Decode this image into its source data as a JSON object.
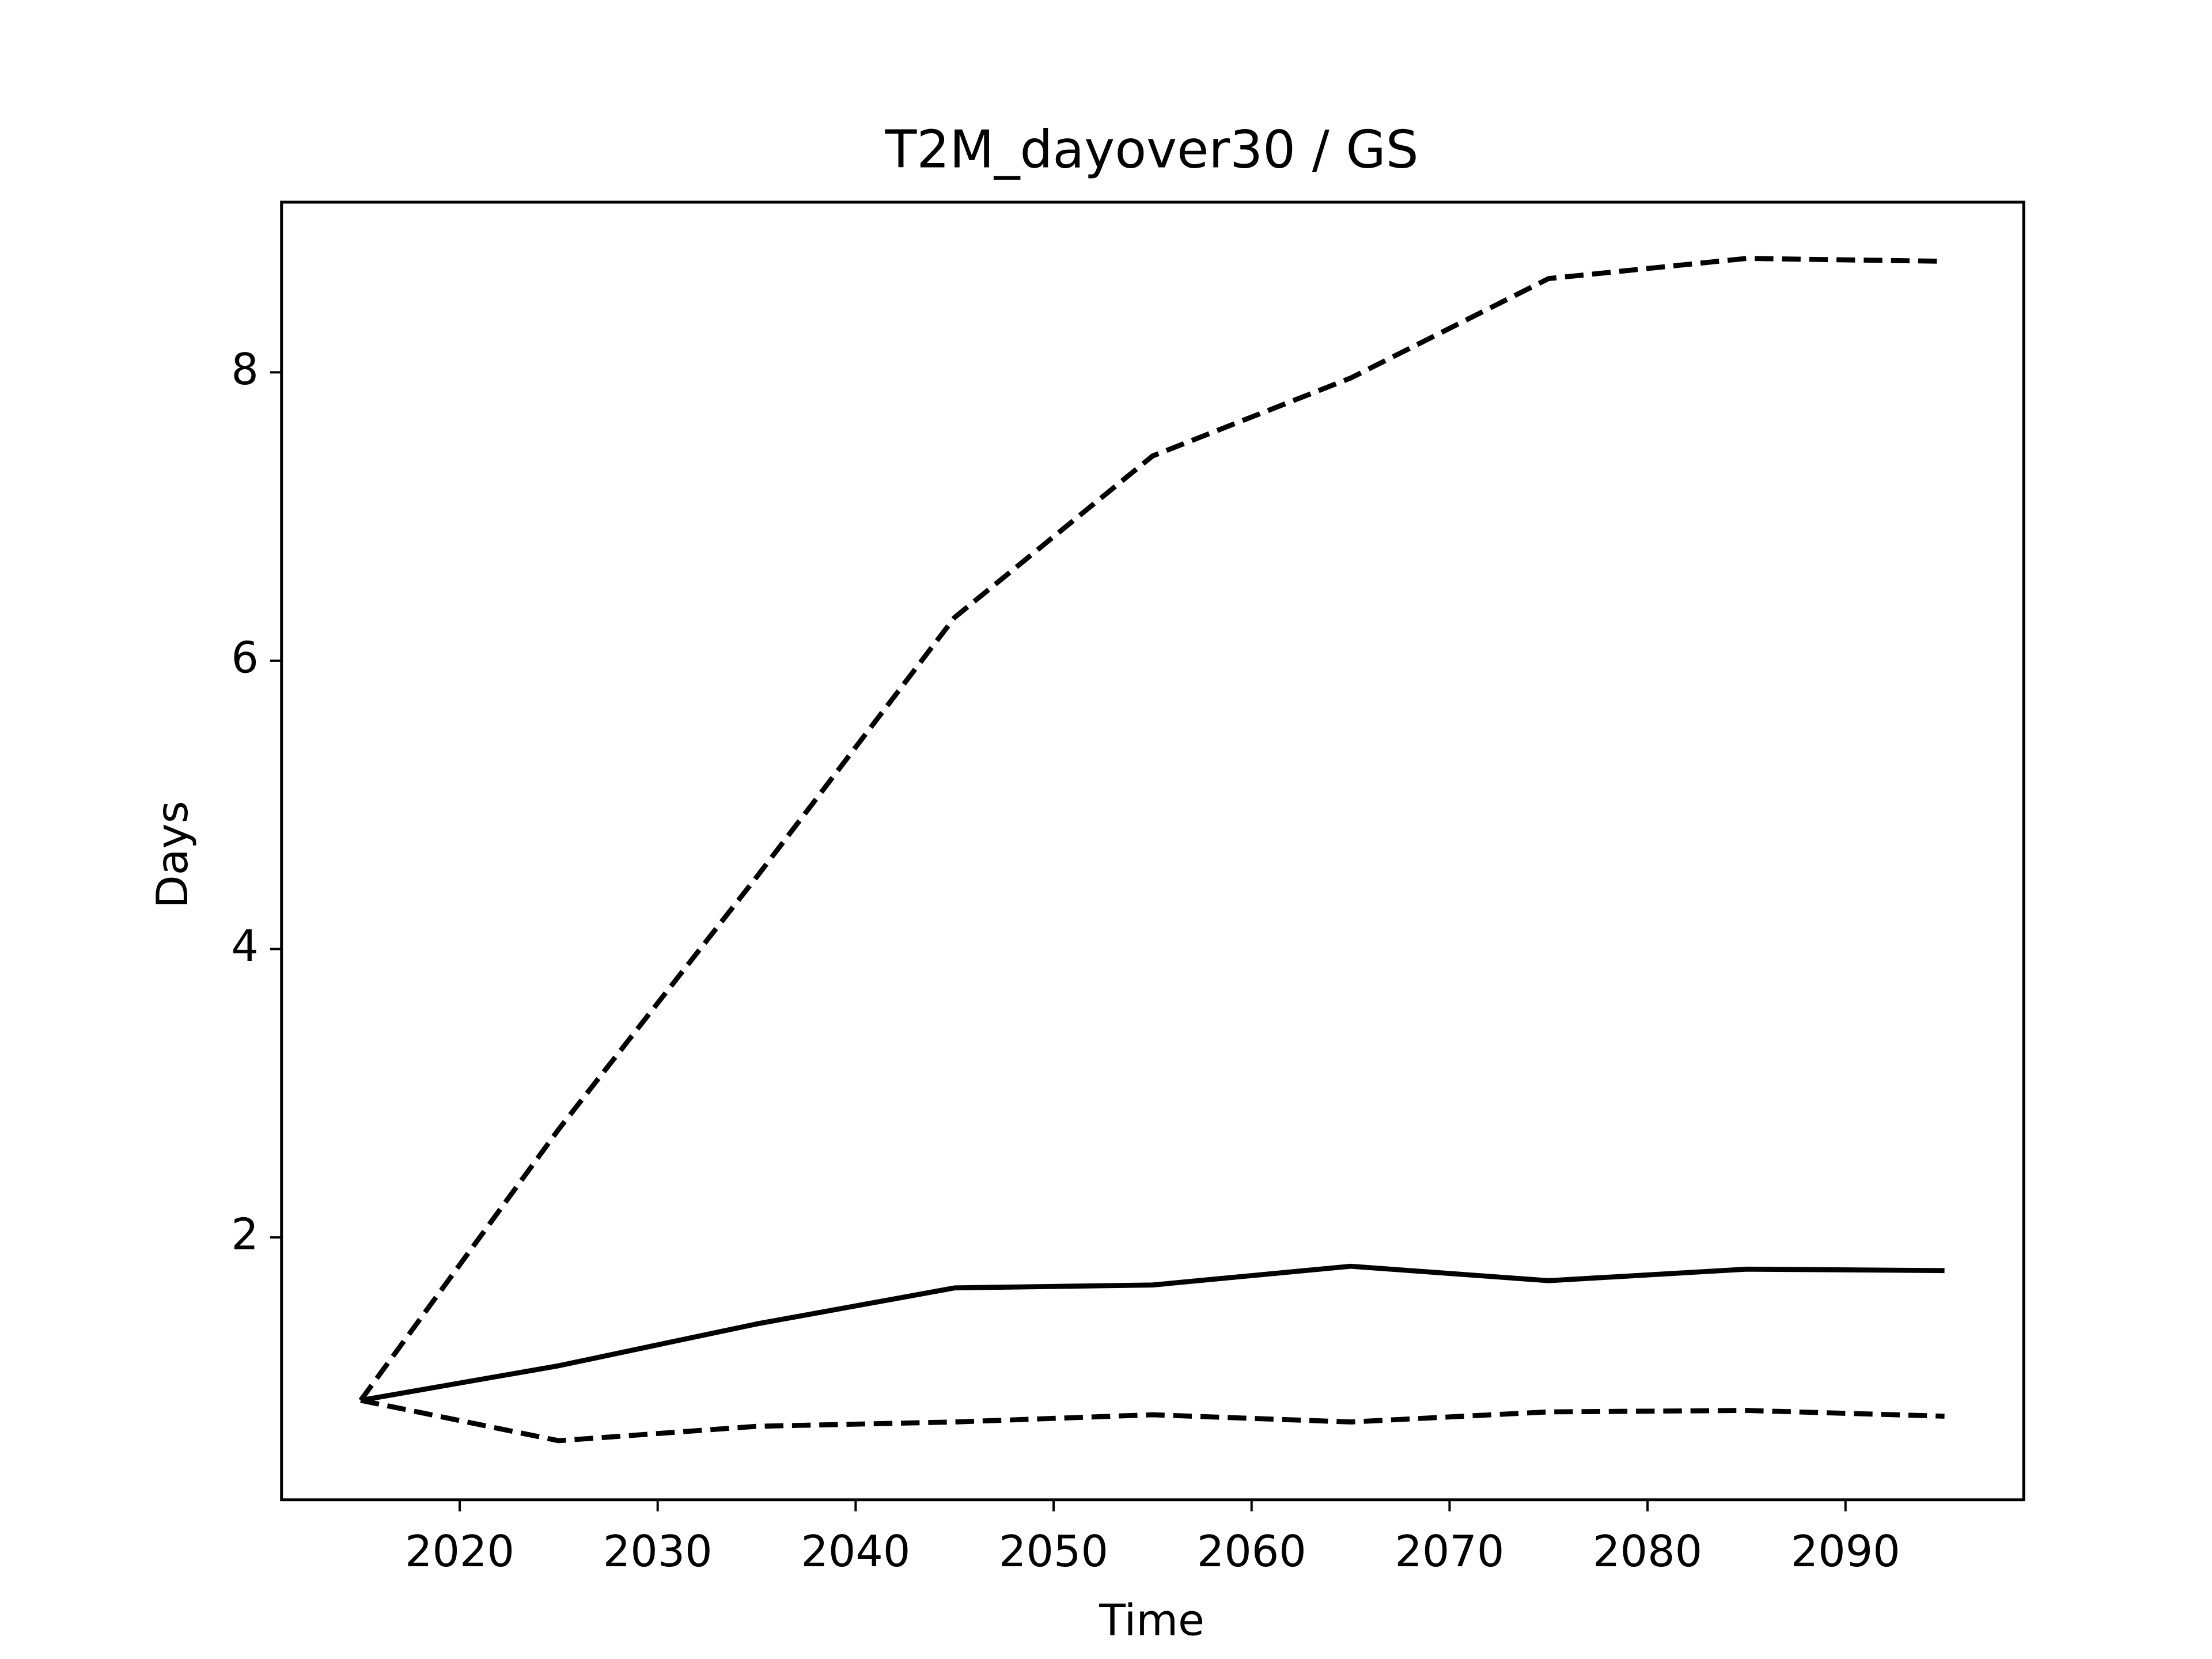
{
  "chart_data": {
    "type": "line",
    "title": "T2M_dayover30 / GS",
    "x_label": "Time",
    "y_label": "Days",
    "x": [
      2015,
      2025,
      2035,
      2045,
      2055,
      2065,
      2075,
      2085,
      2095
    ],
    "series": [
      {
        "color": "#000000",
        "dash": "solid",
        "values": [
          0.87,
          1.11,
          1.4,
          1.65,
          1.67,
          1.8,
          1.7,
          1.78,
          1.77
        ]
      },
      {
        "color": "#000000",
        "dash": "dashed",
        "values": [
          0.87,
          2.75,
          4.5,
          6.3,
          7.42,
          7.96,
          8.65,
          8.79,
          8.77
        ]
      },
      {
        "color": "#000000",
        "dash": "dashed",
        "values": [
          0.87,
          0.59,
          0.69,
          0.72,
          0.77,
          0.72,
          0.79,
          0.8,
          0.76
        ]
      }
    ],
    "xlim": [
      2011,
      2099
    ],
    "xticks": [
      2020,
      2030,
      2040,
      2050,
      2060,
      2070,
      2080,
      2090
    ],
    "ylim": [
      0.18,
      9.18
    ],
    "yticks": [
      2,
      4,
      6,
      8
    ],
    "grid": false
  }
}
